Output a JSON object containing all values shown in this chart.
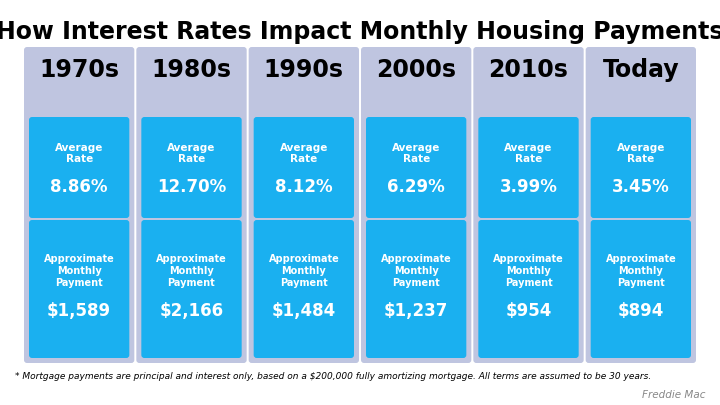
{
  "title": "How Interest Rates Impact Monthly Housing Payments",
  "decades": [
    "1970s",
    "1980s",
    "1990s",
    "2000s",
    "2010s",
    "Today"
  ],
  "rates": [
    "8.86%",
    "12.70%",
    "8.12%",
    "6.29%",
    "3.99%",
    "3.45%"
  ],
  "payments": [
    "$1,589",
    "$2,166",
    "$1,484",
    "$1,237",
    "$954",
    "$894"
  ],
  "avg_rate_label": "Average\nRate",
  "approx_label": "Approximate\nMonthly\nPayment",
  "footnote": "* Mortgage payments are principal and interest only, based on a $200,000 fully amortizing mortgage. All terms are assumed to be 30 years.",
  "credit": "Freddie Mac",
  "bg_color": "#ffffff",
  "card_color": "#bfc5e0",
  "btn_color": "#1ab0f0",
  "title_fontsize": 17,
  "decade_fontsize": 17,
  "rate_label_fontsize": 7.5,
  "rate_val_fontsize": 12,
  "payment_label_fontsize": 7,
  "payment_val_fontsize": 12,
  "footnote_fontsize": 6.5,
  "credit_fontsize": 7.5
}
